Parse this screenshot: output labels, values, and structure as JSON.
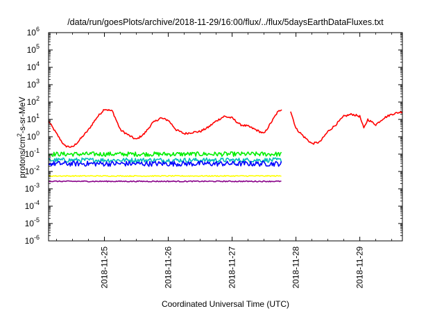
{
  "chart_data": {
    "type": "line",
    "title": "/data/run/goesPlots/archive/2018-11-29/16:00/flux/../flux/5daysEarthDataFluxes.txt",
    "xlabel": "Coordinated Universal Time (UTC)",
    "ylabel": {
      "prefix": "protons/cm",
      "sup": "2",
      "suffix": "-s-sr-MeV"
    },
    "yscale": "log",
    "ylim_exponents": [
      -6,
      6
    ],
    "yticks": [
      {
        "base": "10",
        "exp": "-6"
      },
      {
        "base": "10",
        "exp": "-5"
      },
      {
        "base": "10",
        "exp": "-4"
      },
      {
        "base": "10",
        "exp": "-3"
      },
      {
        "base": "10",
        "exp": "-2"
      },
      {
        "base": "10",
        "exp": "-1"
      },
      {
        "base": "10",
        "exp": "0"
      },
      {
        "base": "10",
        "exp": "1"
      },
      {
        "base": "10",
        "exp": "2"
      },
      {
        "base": "10",
        "exp": "3"
      },
      {
        "base": "10",
        "exp": "4"
      },
      {
        "base": "10",
        "exp": "5"
      },
      {
        "base": "10",
        "exp": "6"
      }
    ],
    "xlim": [
      "2018-11-24 03:00",
      "2018-11-29 16:00"
    ],
    "xticks": [
      {
        "label": "2018-11-25",
        "x": "2018-11-25 00:00"
      },
      {
        "label": "2018-11-26",
        "x": "2018-11-26 00:00"
      },
      {
        "label": "2018-11-27",
        "x": "2018-11-27 00:00"
      },
      {
        "label": "2018-11-28",
        "x": "2018-11-28 00:00"
      },
      {
        "label": "2018-11-29",
        "x": "2018-11-29 00:00"
      }
    ],
    "grid": false,
    "legend": "none",
    "series": [
      {
        "color": "#ff0000",
        "noise": 0.06,
        "x": [
          "2018-11-24 03:00",
          "2018-11-24 06:00",
          "2018-11-24 09:00",
          "2018-11-24 12:00",
          "2018-11-24 14:00",
          "2018-11-24 18:00",
          "2018-11-24 21:00",
          "2018-11-25 00:00",
          "2018-11-25 03:00",
          "2018-11-25 06:00",
          "2018-11-25 10:00",
          "2018-11-25 12:00",
          "2018-11-25 15:00",
          "2018-11-25 18:00",
          "2018-11-25 21:00",
          "2018-11-26 00:00",
          "2018-11-26 03:00",
          "2018-11-26 06:00",
          "2018-11-26 09:00",
          "2018-11-26 12:00",
          "2018-11-26 15:00",
          "2018-11-26 18:00",
          "2018-11-26 21:00",
          "2018-11-27 00:00",
          "2018-11-27 03:00",
          "2018-11-27 06:00",
          "2018-11-27 09:00",
          "2018-11-27 12:00",
          "2018-11-27 15:00",
          "2018-11-27 17:00",
          "2018-11-27 18:40",
          "2018-11-27 19:20",
          "2018-11-27 22:00",
          "2018-11-28 00:00",
          "2018-11-28 03:00",
          "2018-11-28 06:00",
          "2018-11-28 09:00",
          "2018-11-28 12:00",
          "2018-11-28 15:00",
          "2018-11-28 18:00",
          "2018-11-28 21:00",
          "2018-11-29 00:00",
          "2018-11-29 01:30",
          "2018-11-29 03:00",
          "2018-11-29 06:00",
          "2018-11-29 09:00",
          "2018-11-29 12:00",
          "2018-11-29 16:00"
        ],
        "y": [
          8,
          1.5,
          0.3,
          0.25,
          0.5,
          2.5,
          12,
          40,
          30,
          2.5,
          1,
          0.7,
          1.5,
          6,
          12,
          9,
          2.5,
          1.5,
          1.8,
          2,
          3.5,
          8,
          15,
          12,
          5,
          4,
          2.5,
          1.5,
          8,
          25,
          40,
          null,
          30,
          3,
          1,
          0.4,
          0.5,
          2,
          5,
          15,
          20,
          15,
          3,
          10,
          5,
          12,
          20,
          28
        ]
      },
      {
        "color": "#00ee00",
        "noise": 0.13,
        "x": [
          "2018-11-24 03:00",
          "2018-11-25 12:00",
          "2018-11-27 18:30",
          "2018-11-27 19:30",
          "2018-11-29 16:00"
        ],
        "y": [
          0.1,
          0.1,
          0.1,
          null,
          0.1
        ]
      },
      {
        "color": "#00bbbb",
        "noise": 0.13,
        "x": [
          "2018-11-24 03:00",
          "2018-11-25 12:00",
          "2018-11-27 18:30",
          "2018-11-27 19:30",
          "2018-11-29 16:00"
        ],
        "y": [
          0.045,
          0.045,
          0.045,
          null,
          0.045
        ]
      },
      {
        "color": "#0000ff",
        "noise": 0.15,
        "x": [
          "2018-11-24 03:00",
          "2018-11-25 12:00",
          "2018-11-27 18:30",
          "2018-11-27 19:30",
          "2018-11-29 16:00"
        ],
        "y": [
          0.028,
          0.028,
          0.028,
          null,
          0.028
        ]
      },
      {
        "color": "#ffff00",
        "noise": 0.03,
        "x": [
          "2018-11-24 03:00",
          "2018-11-25 12:00",
          "2018-11-27 18:30",
          "2018-11-27 19:30",
          "2018-11-29 16:00"
        ],
        "y": [
          0.0055,
          0.0055,
          0.0055,
          null,
          0.0055
        ]
      },
      {
        "color": "#880088",
        "noise": 0.03,
        "x": [
          "2018-11-24 03:00",
          "2018-11-25 12:00",
          "2018-11-27 18:30",
          "2018-11-27 19:30",
          "2018-11-29 16:00"
        ],
        "y": [
          0.0027,
          0.0027,
          0.0027,
          null,
          0.0027
        ]
      }
    ]
  }
}
